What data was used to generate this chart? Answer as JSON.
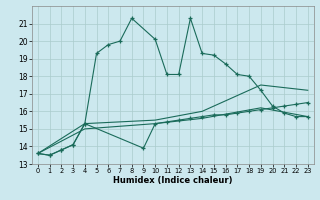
{
  "xlabel": "Humidex (Indice chaleur)",
  "bg_color": "#cce8ee",
  "line_color": "#1a6b5a",
  "grid_color": "#aacccc",
  "ylim": [
    13,
    22
  ],
  "xlim": [
    -0.5,
    23.5
  ],
  "yticks": [
    13,
    14,
    15,
    16,
    17,
    18,
    19,
    20,
    21
  ],
  "xticks": [
    0,
    1,
    2,
    3,
    4,
    5,
    6,
    7,
    8,
    9,
    10,
    11,
    12,
    13,
    14,
    15,
    16,
    17,
    18,
    19,
    20,
    21,
    22,
    23
  ],
  "series1_x": [
    0,
    1,
    2,
    3,
    4,
    5,
    6,
    7,
    8,
    10,
    11,
    12,
    13,
    14,
    15,
    16,
    17,
    18,
    19,
    20,
    21,
    22,
    23
  ],
  "series1_y": [
    13.6,
    13.5,
    13.8,
    14.1,
    15.3,
    19.3,
    19.8,
    20.0,
    21.3,
    20.1,
    18.1,
    18.1,
    21.3,
    19.3,
    19.2,
    18.7,
    18.1,
    18.0,
    17.2,
    16.3,
    15.9,
    15.7,
    15.7
  ],
  "series2_x": [
    0,
    1,
    2,
    3,
    4,
    9,
    10,
    11,
    12,
    13,
    14,
    15,
    16,
    17,
    18,
    19,
    20,
    21,
    22,
    23
  ],
  "series2_y": [
    13.6,
    13.5,
    13.8,
    14.1,
    15.3,
    13.9,
    15.3,
    15.4,
    15.5,
    15.6,
    15.7,
    15.8,
    15.8,
    15.9,
    16.0,
    16.1,
    16.2,
    16.3,
    16.4,
    16.5
  ],
  "series3_x": [
    0,
    4,
    10,
    14,
    19,
    23
  ],
  "series3_y": [
    13.6,
    15.3,
    15.5,
    16.0,
    17.5,
    17.2
  ],
  "series4_x": [
    0,
    4,
    10,
    14,
    19,
    23
  ],
  "series4_y": [
    13.6,
    15.0,
    15.3,
    15.6,
    16.2,
    15.7
  ]
}
